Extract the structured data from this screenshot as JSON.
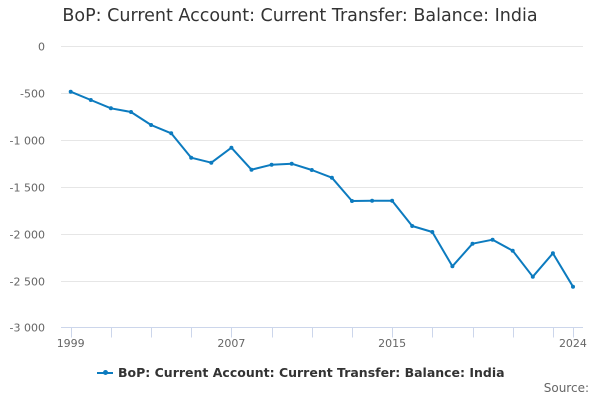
{
  "title": "BoP: Current Account: Current Transfer: Balance: India",
  "legend": {
    "label": "BoP: Current Account: Current Transfer: Balance: India"
  },
  "source_label": "Source:",
  "colors": {
    "series": "#0c7bbf",
    "grid": "#e6e6e6",
    "axis": "#ccd6eb"
  },
  "chart_data": {
    "type": "line",
    "title": "BoP: Current Account: Current Transfer: Balance: India",
    "xlabel": "",
    "ylabel": "",
    "ylim": [
      -3000,
      0
    ],
    "yticks": [
      0,
      -500,
      -1000,
      -1500,
      -2000,
      -2500,
      -3000
    ],
    "ytick_labels": [
      "0",
      "-500",
      "-1 000",
      "-1 500",
      "-2 000",
      "-2 500",
      "-3 000"
    ],
    "xtick_labels": [
      "1999",
      "2007",
      "2015",
      "2024"
    ],
    "grid": true,
    "legend_position": "bottom",
    "x": [
      1999,
      2000,
      2001,
      2002,
      2003,
      2004,
      2005,
      2006,
      2007,
      2008,
      2009,
      2010,
      2011,
      2012,
      2013,
      2014,
      2015,
      2016,
      2017,
      2018,
      2019,
      2020,
      2021,
      2022,
      2023,
      2024
    ],
    "series": [
      {
        "name": "BoP: Current Account: Current Transfer: Balance: India",
        "values": [
          -485,
          -573,
          -662,
          -701,
          -840,
          -928,
          -1189,
          -1242,
          -1082,
          -1317,
          -1264,
          -1253,
          -1320,
          -1402,
          -1651,
          -1648,
          -1648,
          -1918,
          -1982,
          -2348,
          -2107,
          -2064,
          -2181,
          -2459,
          -2209,
          -2566
        ]
      }
    ]
  }
}
